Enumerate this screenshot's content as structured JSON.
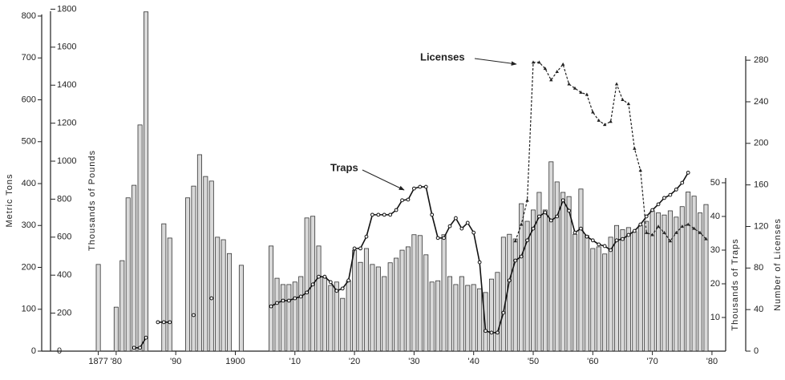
{
  "chart_data": {
    "type": "bar",
    "ylabel": "Metric Tons",
    "y_pounds_label": "Thousands of Pounds",
    "y2label": "Thousands of Traps",
    "y3label": "Number of Licenses",
    "xlim": [
      1867.5,
      1982.3
    ],
    "xticks": [
      {
        "value": 1877,
        "label": "1877"
      },
      {
        "value": 1880,
        "label": "'80"
      },
      {
        "value": 1890,
        "label": "'90"
      },
      1900,
      {
        "value": 1910,
        "label": "'10"
      },
      {
        "value": 1920,
        "label": "'20"
      },
      {
        "value": 1930,
        "label": "'30"
      },
      {
        "value": 1940,
        "label": "'40"
      },
      {
        "value": 1950,
        "label": "'50"
      },
      {
        "value": 1960,
        "label": "'60"
      },
      {
        "value": 1970,
        "label": "'70"
      },
      {
        "value": 1980,
        "label": "'80"
      }
    ],
    "ylim": [
      0,
      820
    ],
    "yticks": [
      0,
      100,
      200,
      300,
      400,
      500,
      600,
      700,
      800
    ],
    "y_pounds_lim": [
      0,
      1808
    ],
    "y_pounds_ticks": [
      0,
      200,
      400,
      600,
      800,
      1000,
      1200,
      1400,
      1600,
      1800
    ],
    "y2lim": [
      0,
      102
    ],
    "y2ticks": [
      10,
      20,
      30,
      40,
      50
    ],
    "y3lim": [
      0,
      330.6
    ],
    "y3ticks": [
      0,
      40,
      80,
      120,
      160,
      200,
      240,
      280
    ],
    "color": "#d9d9d9",
    "x": [
      1877,
      1878,
      1879,
      1880,
      1881,
      1882,
      1883,
      1884,
      1885,
      1886,
      1887,
      1888,
      1889,
      1890,
      1891,
      1892,
      1893,
      1894,
      1895,
      1896,
      1897,
      1898,
      1899,
      1900,
      1901,
      1902,
      1903,
      1904,
      1905,
      1906,
      1907,
      1908,
      1909,
      1910,
      1911,
      1912,
      1913,
      1914,
      1915,
      1916,
      1917,
      1918,
      1919,
      1920,
      1921,
      1922,
      1923,
      1924,
      1925,
      1926,
      1927,
      1928,
      1929,
      1930,
      1931,
      1932,
      1933,
      1934,
      1935,
      1936,
      1937,
      1938,
      1939,
      1940,
      1941,
      1942,
      1943,
      1944,
      1945,
      1946,
      1947,
      1948,
      1949,
      1950,
      1951,
      1952,
      1953,
      1954,
      1955,
      1956,
      1957,
      1958,
      1959,
      1960,
      1961,
      1962,
      1963,
      1964,
      1965,
      1966,
      1967,
      1968,
      1969,
      1970,
      1971,
      1972,
      1973,
      1974,
      1975,
      1976,
      1977,
      1978,
      1979
    ],
    "values": [
      207,
      null,
      null,
      105,
      216,
      366,
      396,
      540,
      810,
      null,
      null,
      304,
      270,
      null,
      null,
      366,
      394,
      469,
      417,
      406,
      272,
      266,
      233,
      null,
      205,
      null,
      null,
      null,
      null,
      251,
      174,
      159,
      159,
      165,
      178,
      318,
      322,
      251,
      176,
      157,
      165,
      126,
      168,
      241,
      212,
      245,
      207,
      201,
      178,
      211,
      222,
      241,
      249,
      278,
      276,
      230,
      165,
      168,
      278,
      178,
      159,
      178,
      157,
      159,
      149,
      140,
      172,
      188,
      272,
      279,
      268,
      352,
      310,
      337,
      379,
      337,
      452,
      404,
      379,
      369,
      279,
      387,
      276,
      245,
      249,
      232,
      272,
      300,
      290,
      295,
      285,
      300,
      310,
      335,
      330,
      325,
      335,
      320,
      345,
      380,
      370,
      330,
      350
    ],
    "series": [
      {
        "name": "Traps",
        "type": "line",
        "axis": "y2",
        "color": "#111111",
        "dash": false,
        "values": [
          null,
          null,
          null,
          null,
          null,
          null,
          1,
          1,
          4,
          null,
          8.6,
          8.6,
          8.6,
          null,
          null,
          null,
          10.7,
          null,
          null,
          15.7,
          null,
          null,
          null,
          null,
          null,
          null,
          null,
          null,
          null,
          13.3,
          14.3,
          15,
          15,
          15.7,
          16.2,
          17.4,
          19.8,
          22.1,
          22.1,
          20.5,
          17.9,
          18.6,
          21,
          30.5,
          30.5,
          34,
          40.5,
          40.5,
          40.5,
          40.5,
          41.9,
          44.8,
          45,
          48.3,
          48.8,
          48.8,
          40.5,
          33.6,
          33.6,
          37.1,
          39.5,
          36.4,
          38.1,
          35.2,
          26.4,
          6,
          5.5,
          5.5,
          11.4,
          21,
          26.9,
          28.1,
          32.9,
          36.4,
          40,
          41.2,
          38.8,
          40,
          44.8,
          41.7,
          35.2,
          36.4,
          34,
          32.9,
          31.7,
          31.2,
          30,
          32.9,
          33.3,
          34.5,
          35.7,
          37.6,
          40,
          41.9,
          43.6,
          45.5,
          46.4,
          48,
          50,
          53,
          null,
          null,
          null
        ]
      },
      {
        "name": "Licenses",
        "type": "line",
        "axis": "y3",
        "color": "#222222",
        "dash": true,
        "values": [
          null,
          null,
          null,
          null,
          null,
          null,
          null,
          null,
          null,
          null,
          null,
          null,
          null,
          null,
          null,
          null,
          null,
          null,
          null,
          null,
          null,
          null,
          null,
          null,
          null,
          null,
          null,
          null,
          null,
          null,
          null,
          null,
          null,
          null,
          null,
          null,
          null,
          null,
          null,
          null,
          null,
          null,
          null,
          null,
          null,
          null,
          null,
          null,
          null,
          null,
          null,
          null,
          null,
          null,
          null,
          null,
          null,
          null,
          null,
          null,
          null,
          null,
          null,
          null,
          null,
          null,
          null,
          null,
          null,
          null,
          106,
          122,
          145,
          278,
          278,
          272,
          261,
          269,
          276,
          257,
          253,
          249,
          247,
          230,
          222,
          218,
          221,
          257,
          242,
          238,
          195,
          174,
          114,
          112,
          120,
          114,
          106,
          114,
          120,
          122,
          118,
          114,
          108
        ]
      }
    ]
  }
}
